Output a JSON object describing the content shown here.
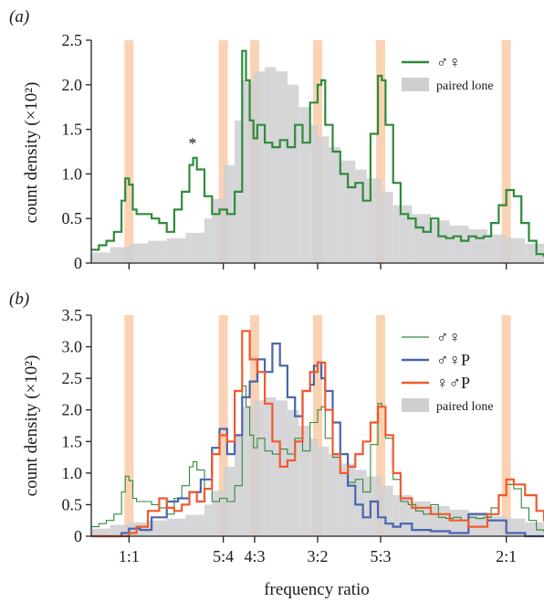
{
  "colors": {
    "band": "#fbd3b4",
    "paired_lone": "#cfcfd2",
    "mf": "#2e8b3a",
    "mfP": "#4a64b0",
    "fmP": "#f05a2e",
    "axis": "#222222"
  },
  "chart_data": [
    {
      "type": "histogram+step",
      "panel_label": "(a)",
      "ylabel": "count density (×10²)",
      "ylim": [
        0,
        2.5
      ],
      "yticks": [
        0,
        0.5,
        1.0,
        1.5,
        2.0,
        2.5
      ],
      "ytick_labels": [
        "0",
        "0.5",
        "1.0",
        "1.5",
        "2.0",
        "2.5"
      ],
      "xlim": [
        0.9,
        2.1
      ],
      "xticks": [
        1.0,
        1.25,
        1.333,
        1.5,
        1.667,
        2.0
      ],
      "bands": [
        1.0,
        1.25,
        1.333,
        1.5,
        1.667,
        2.0
      ],
      "annotation": {
        "text": "*",
        "x": 1.17,
        "y": 1.35
      },
      "legend": [
        {
          "label": "♂♀",
          "kind": "line",
          "color_key": "mf"
        },
        {
          "label": "paired lone",
          "kind": "fill",
          "color_key": "paired_lone"
        }
      ],
      "fill_series": {
        "name": "paired lone",
        "x": [
          0.9,
          0.95,
          1.0,
          1.05,
          1.1,
          1.15,
          1.2,
          1.22,
          1.25,
          1.28,
          1.3,
          1.33,
          1.36,
          1.39,
          1.42,
          1.45,
          1.48,
          1.5,
          1.53,
          1.56,
          1.6,
          1.63,
          1.67,
          1.7,
          1.75,
          1.8,
          1.85,
          1.9,
          1.95,
          2.0,
          2.05,
          2.1
        ],
        "y": [
          0.12,
          0.18,
          0.22,
          0.25,
          0.28,
          0.34,
          0.5,
          0.72,
          1.1,
          1.6,
          2.05,
          2.15,
          2.2,
          2.15,
          2.0,
          1.75,
          1.55,
          1.42,
          1.3,
          1.15,
          1.05,
          0.95,
          0.8,
          0.65,
          0.55,
          0.48,
          0.42,
          0.38,
          0.32,
          0.28,
          0.22,
          0.14
        ]
      },
      "series": [
        {
          "name": "♂♀",
          "color_key": "mf",
          "x": [
            0.9,
            0.92,
            0.94,
            0.96,
            0.98,
            0.99,
            1.0,
            1.01,
            1.02,
            1.04,
            1.06,
            1.08,
            1.1,
            1.12,
            1.14,
            1.16,
            1.17,
            1.18,
            1.2,
            1.22,
            1.24,
            1.26,
            1.28,
            1.3,
            1.31,
            1.32,
            1.33,
            1.34,
            1.36,
            1.38,
            1.4,
            1.42,
            1.44,
            1.46,
            1.48,
            1.5,
            1.51,
            1.52,
            1.54,
            1.56,
            1.58,
            1.6,
            1.62,
            1.64,
            1.66,
            1.67,
            1.68,
            1.7,
            1.72,
            1.74,
            1.76,
            1.78,
            1.8,
            1.82,
            1.84,
            1.86,
            1.88,
            1.9,
            1.92,
            1.94,
            1.96,
            1.98,
            2.0,
            2.02,
            2.04,
            2.06,
            2.08,
            2.1
          ],
          "y": [
            0.15,
            0.2,
            0.25,
            0.35,
            0.7,
            0.95,
            0.88,
            0.6,
            0.55,
            0.55,
            0.5,
            0.45,
            0.35,
            0.6,
            0.8,
            1.1,
            1.18,
            1.05,
            0.75,
            0.55,
            0.6,
            0.55,
            0.8,
            2.38,
            2.05,
            1.6,
            1.4,
            1.55,
            1.35,
            1.3,
            1.38,
            1.3,
            1.55,
            1.35,
            1.8,
            2.0,
            2.05,
            1.55,
            1.25,
            1.0,
            0.85,
            0.9,
            0.7,
            1.45,
            2.1,
            2.05,
            1.55,
            0.9,
            0.55,
            0.5,
            0.4,
            0.35,
            0.5,
            0.3,
            0.28,
            0.3,
            0.25,
            0.3,
            0.28,
            0.3,
            0.45,
            0.65,
            0.82,
            0.75,
            0.45,
            0.25,
            0.1,
            0.08
          ]
        }
      ]
    },
    {
      "type": "histogram+step",
      "panel_label": "(b)",
      "ylabel": "count density (×10²)",
      "xlabel": "frequency ratio",
      "ylim": [
        0,
        3.5
      ],
      "yticks": [
        0,
        0.5,
        1.0,
        1.5,
        2.0,
        2.5,
        3.0,
        3.5
      ],
      "ytick_labels": [
        "0",
        "0.5",
        "1.0",
        "1.5",
        "2.0",
        "2.5",
        "3.0",
        "3.5"
      ],
      "xlim": [
        0.9,
        2.1
      ],
      "xticks": [
        1.0,
        1.25,
        1.333,
        1.5,
        1.667,
        2.0
      ],
      "xtick_labels": [
        "1:1",
        "5:4",
        "4:3",
        "3:2",
        "5:3",
        "2:1"
      ],
      "bands": [
        1.0,
        1.25,
        1.333,
        1.5,
        1.667,
        2.0
      ],
      "legend": [
        {
          "label": "♂♀",
          "kind": "thinline",
          "color_key": "mf"
        },
        {
          "label": "♂♀P",
          "kind": "line",
          "color_key": "mfP"
        },
        {
          "label": "♀♂P",
          "kind": "line",
          "color_key": "fmP"
        },
        {
          "label": "paired lone",
          "kind": "fill",
          "color_key": "paired_lone"
        }
      ],
      "fill_series": {
        "name": "paired lone",
        "x": [
          0.9,
          0.95,
          1.0,
          1.05,
          1.1,
          1.15,
          1.2,
          1.22,
          1.25,
          1.28,
          1.3,
          1.33,
          1.36,
          1.39,
          1.42,
          1.45,
          1.48,
          1.5,
          1.53,
          1.56,
          1.6,
          1.63,
          1.67,
          1.7,
          1.75,
          1.8,
          1.85,
          1.9,
          1.95,
          2.0,
          2.05,
          2.1
        ],
        "y": [
          0.12,
          0.18,
          0.22,
          0.25,
          0.28,
          0.34,
          0.5,
          0.72,
          1.1,
          1.6,
          2.05,
          2.15,
          2.2,
          2.15,
          2.0,
          1.75,
          1.55,
          1.42,
          1.3,
          1.15,
          1.05,
          0.95,
          0.8,
          0.65,
          0.55,
          0.48,
          0.42,
          0.38,
          0.32,
          0.28,
          0.22,
          0.14
        ]
      },
      "series": [
        {
          "name": "♂♀",
          "color_key": "mf",
          "thin": true,
          "x": [
            0.9,
            0.92,
            0.94,
            0.96,
            0.98,
            0.99,
            1.0,
            1.01,
            1.02,
            1.04,
            1.06,
            1.08,
            1.1,
            1.12,
            1.14,
            1.16,
            1.17,
            1.18,
            1.2,
            1.22,
            1.24,
            1.26,
            1.28,
            1.3,
            1.31,
            1.32,
            1.33,
            1.34,
            1.36,
            1.38,
            1.4,
            1.42,
            1.44,
            1.46,
            1.48,
            1.5,
            1.51,
            1.52,
            1.54,
            1.56,
            1.58,
            1.6,
            1.62,
            1.64,
            1.66,
            1.67,
            1.68,
            1.7,
            1.72,
            1.74,
            1.76,
            1.78,
            1.8,
            1.82,
            1.84,
            1.86,
            1.88,
            1.9,
            1.92,
            1.94,
            1.96,
            1.98,
            2.0,
            2.02,
            2.04,
            2.06,
            2.08,
            2.1
          ],
          "y": [
            0.15,
            0.2,
            0.25,
            0.35,
            0.7,
            0.95,
            0.88,
            0.6,
            0.55,
            0.55,
            0.5,
            0.45,
            0.35,
            0.6,
            0.8,
            1.1,
            1.18,
            1.05,
            0.75,
            0.55,
            0.6,
            0.55,
            0.8,
            2.38,
            2.05,
            1.6,
            1.4,
            1.55,
            1.35,
            1.3,
            1.38,
            1.3,
            1.55,
            1.35,
            1.8,
            2.0,
            2.05,
            1.55,
            1.25,
            1.0,
            0.85,
            0.9,
            0.7,
            1.45,
            2.1,
            2.05,
            1.55,
            0.9,
            0.55,
            0.5,
            0.4,
            0.35,
            0.5,
            0.3,
            0.28,
            0.3,
            0.25,
            0.3,
            0.28,
            0.3,
            0.45,
            0.65,
            0.82,
            0.75,
            0.45,
            0.25,
            0.1,
            0.08
          ]
        },
        {
          "name": "♂♀P",
          "color_key": "mfP",
          "x": [
            0.9,
            0.95,
            0.98,
            1.0,
            1.03,
            1.06,
            1.1,
            1.13,
            1.16,
            1.19,
            1.22,
            1.24,
            1.26,
            1.28,
            1.3,
            1.32,
            1.34,
            1.36,
            1.38,
            1.4,
            1.42,
            1.44,
            1.46,
            1.48,
            1.49,
            1.5,
            1.51,
            1.52,
            1.54,
            1.56,
            1.58,
            1.6,
            1.62,
            1.64,
            1.66,
            1.68,
            1.7,
            1.72,
            1.75,
            1.8,
            1.85,
            1.9,
            1.95,
            2.0,
            2.05,
            2.1
          ],
          "y": [
            0,
            0,
            0.05,
            0.12,
            0.1,
            0.3,
            0.55,
            0.6,
            0.7,
            0.9,
            1.4,
            1.7,
            1.3,
            1.6,
            2.2,
            2.45,
            2.8,
            2.6,
            3.05,
            2.7,
            2.2,
            1.9,
            2.3,
            2.4,
            2.7,
            2.75,
            2.5,
            2.3,
            1.8,
            1.3,
            0.8,
            0.5,
            0.3,
            0.55,
            0.3,
            0.2,
            0.15,
            0.2,
            0.1,
            0.08,
            0.05,
            0.35,
            0.25,
            0.05,
            0,
            0
          ]
        },
        {
          "name": "♀♂P",
          "color_key": "fmP",
          "x": [
            0.9,
            0.95,
            1.0,
            1.02,
            1.05,
            1.08,
            1.1,
            1.12,
            1.14,
            1.16,
            1.18,
            1.2,
            1.22,
            1.24,
            1.26,
            1.28,
            1.3,
            1.32,
            1.34,
            1.36,
            1.38,
            1.4,
            1.42,
            1.44,
            1.46,
            1.48,
            1.5,
            1.52,
            1.54,
            1.56,
            1.58,
            1.6,
            1.62,
            1.64,
            1.66,
            1.68,
            1.7,
            1.72,
            1.75,
            1.8,
            1.85,
            1.9,
            1.95,
            1.98,
            2.0,
            2.02,
            2.05,
            2.08,
            2.1
          ],
          "y": [
            0,
            0,
            0.05,
            0.15,
            0.4,
            0.6,
            0.45,
            0.4,
            0.5,
            0.7,
            0.55,
            0.75,
            1.3,
            1.6,
            1.5,
            2.3,
            3.25,
            2.8,
            2.6,
            2.1,
            1.5,
            1.1,
            1.2,
            1.5,
            2.3,
            2.6,
            2.75,
            2.0,
            1.3,
            1.0,
            1.1,
            1.3,
            1.5,
            1.8,
            2.05,
            1.6,
            1.0,
            0.6,
            0.45,
            0.35,
            0.25,
            0.15,
            0.35,
            0.65,
            0.9,
            0.82,
            0.65,
            0.4,
            0.25
          ]
        }
      ]
    }
  ]
}
